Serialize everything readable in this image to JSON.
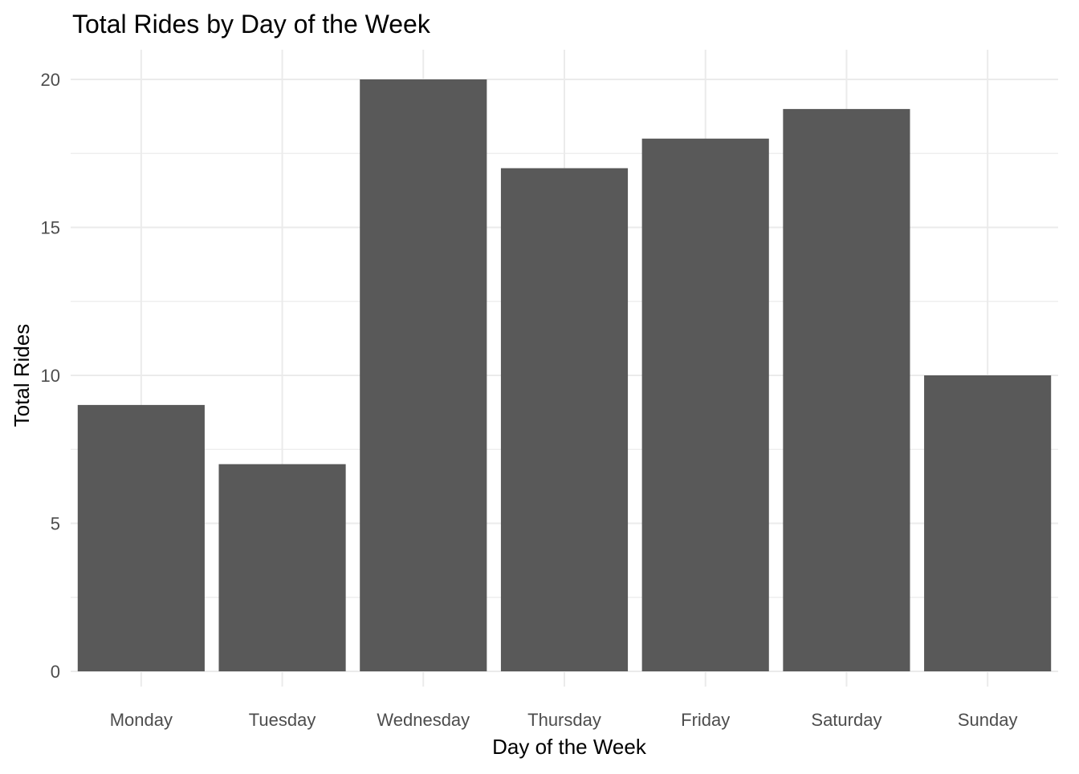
{
  "chart_data": {
    "type": "bar",
    "title": "Total Rides by Day of the Week",
    "xlabel": "Day of the Week",
    "ylabel": "Total Rides",
    "categories": [
      "Monday",
      "Tuesday",
      "Wednesday",
      "Thursday",
      "Friday",
      "Saturday",
      "Sunday"
    ],
    "values": [
      9,
      7,
      20,
      17,
      18,
      19,
      10
    ],
    "ylim": [
      0,
      21
    ],
    "yticks": [
      "0",
      "5",
      "10",
      "15",
      "20"
    ],
    "grid": true,
    "legend": "none",
    "bar_color": "#595959",
    "grid_color": "#ebebeb"
  }
}
